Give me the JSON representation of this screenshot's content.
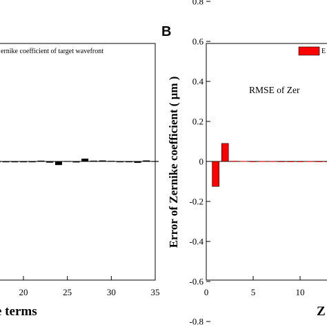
{
  "chart_data": [
    {
      "type": "bar",
      "panel_label": "",
      "xlabel": "e terms",
      "ylabel": "",
      "xlim": [
        0,
        35
      ],
      "ylim": [
        -0.9,
        0.9
      ],
      "x_ticks": [
        "20",
        "25",
        "30",
        "35"
      ],
      "y_ticks": [],
      "legend": {
        "text": "ernike coefficient of target wavefront",
        "color": "#000000"
      },
      "grid": false,
      "series": [
        {
          "color": "#000000",
          "x": [
            14,
            15,
            16,
            17,
            18,
            19,
            20,
            21,
            22,
            23,
            24,
            25,
            26,
            27,
            28,
            29,
            30,
            31,
            32,
            33,
            34,
            35
          ],
          "values": [
            0,
            0,
            0,
            0,
            0,
            0,
            0,
            0,
            0.004,
            -0.006,
            -0.018,
            0.002,
            -0.005,
            0.014,
            0.004,
            0.005,
            0.003,
            -0.003,
            -0.002,
            -0.007,
            0.005,
            0.002
          ]
        }
      ]
    },
    {
      "type": "bar",
      "panel_label": "B",
      "xlabel": "Z",
      "ylabel": "Error of Zernike coefficient ( μm )",
      "xlim": [
        0,
        20
      ],
      "ylim": [
        -0.9,
        0.9
      ],
      "x_ticks": [
        "0",
        "5",
        "10"
      ],
      "y_ticks": [
        "0.8",
        "0.6",
        "0.4",
        "0.2",
        "0",
        "-0.2",
        "-0.4",
        "-0.6",
        "-0.8"
      ],
      "legend": {
        "text": "E",
        "color": "#ff0000"
      },
      "annotation": "RMSE of Zer",
      "grid": false,
      "series": [
        {
          "color": "#ff0000",
          "x": [
            1,
            2,
            3,
            4,
            5,
            6,
            7,
            8,
            9,
            10,
            11,
            12,
            13,
            14
          ],
          "values": [
            -0.125,
            0.09,
            0.003,
            0.002,
            -0.002,
            0.001,
            0.001,
            -0.001,
            0,
            0,
            0.001,
            0,
            0,
            0
          ]
        }
      ]
    }
  ]
}
